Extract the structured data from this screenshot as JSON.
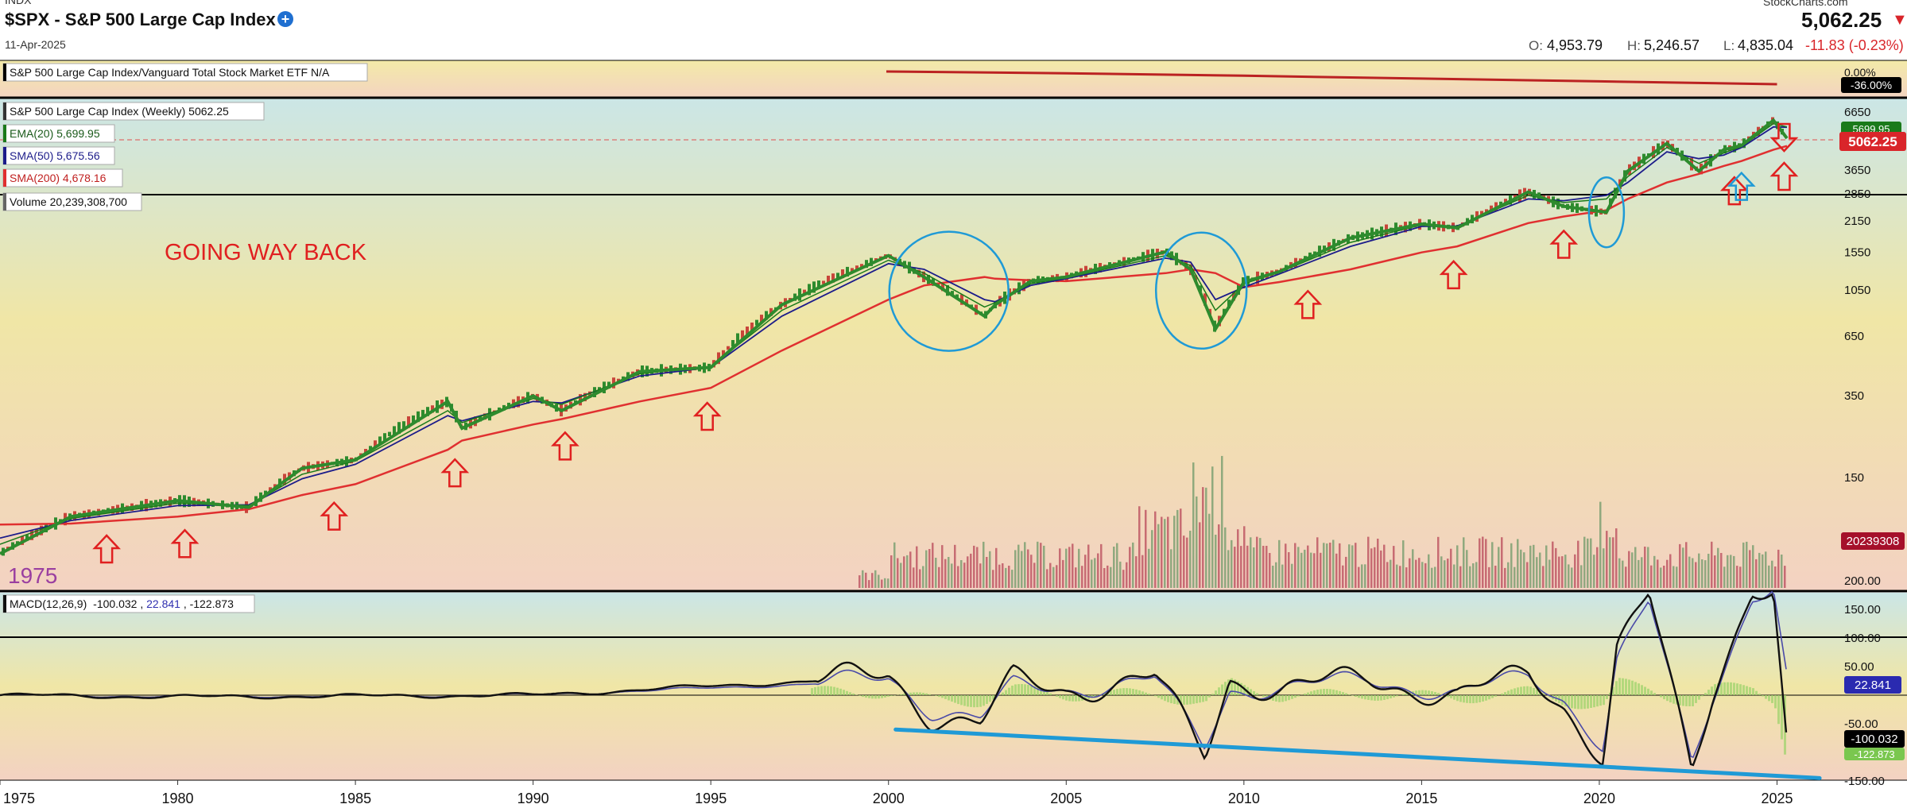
{
  "header": {
    "exchange": "INDX",
    "symbol_title": "$SPX - S&P 500 Large Cap Index",
    "add_icon": "plus-circle-icon",
    "date": "11-Apr-2025",
    "brand": "StockCharts.com",
    "price": "5,062.25",
    "direction_icon": "triangle-down-icon",
    "ohlc": {
      "open_label": "O:",
      "open": "4,953.79",
      "high_label": "H:",
      "high": "5,246.57",
      "low_label": "L:",
      "low": "4,835.04",
      "change": "-11.83 (-0.23%)"
    }
  },
  "colors": {
    "accent_blue": "#1f9ad6",
    "price_up": "#2e8b2e",
    "price_down": "#d9252a",
    "sma200": "#e03030",
    "sma50": "#1c1c8a",
    "ema20": "#1a7a1a",
    "annotation_red": "#e02020"
  },
  "chart_data": [
    {
      "type": "line",
      "panel": "ratio",
      "legend": [
        "S&P 500 Large Cap Index/Vanguard Total Stock Market ETF N/A"
      ],
      "y_ticks": [
        "0.00%"
      ],
      "last_value_badge": "-36.00%",
      "x": [
        2000.0,
        2005,
        2010,
        2015,
        2020,
        2025.0
      ],
      "series": [
        {
          "values": [
            0.0,
            -5,
            -12,
            -20,
            -28,
            -36
          ]
        }
      ]
    },
    {
      "type": "line",
      "panel": "price",
      "scale": "log",
      "x": [
        1975,
        1977,
        1980,
        1982,
        1983.5,
        1985,
        1987.6,
        1988,
        1990,
        1990.8,
        1993,
        1995,
        1997,
        2000.0,
        2001,
        2002.7,
        2003,
        2004,
        2005,
        2007.8,
        2008.5,
        2009.2,
        2010,
        2011,
        2013,
        2015,
        2016,
        2018,
        2019,
        2020.2,
        2020.8,
        2021.9,
        2022.8,
        2023.5,
        2024,
        2024.9,
        2025.28
      ],
      "series": [
        {
          "name": "S&P 500 Large Cap Index (Weekly) 5062.25",
          "values": [
            68,
            100,
            118,
            110,
            165,
            180,
            330,
            250,
            350,
            300,
            450,
            470,
            900,
            1500,
            1200,
            800,
            900,
            1150,
            1200,
            1560,
            1300,
            700,
            1140,
            1270,
            1800,
            2080,
            2000,
            2900,
            2500,
            2350,
            3600,
            4800,
            3600,
            4500,
            4700,
            6100,
            5062
          ]
        },
        {
          "name": "EMA(20) 5,699.95",
          "values": [
            75,
            98,
            115,
            112,
            155,
            178,
            300,
            265,
            340,
            320,
            440,
            475,
            850,
            1430,
            1250,
            880,
            920,
            1120,
            1190,
            1500,
            1350,
            850,
            1120,
            1260,
            1720,
            2060,
            2030,
            2800,
            2600,
            2700,
            3400,
            4600,
            3900,
            4350,
            4650,
            5900,
            5700
          ]
        },
        {
          "name": "SMA(50) 5,675.56",
          "values": [
            80,
            96,
            112,
            113,
            148,
            172,
            285,
            270,
            330,
            325,
            430,
            470,
            800,
            1380,
            1300,
            950,
            930,
            1100,
            1180,
            1460,
            1400,
            950,
            1080,
            1240,
            1650,
            2030,
            2040,
            2700,
            2650,
            2800,
            3200,
            4400,
            4100,
            4250,
            4600,
            5700,
            5675
          ]
        },
        {
          "name": "SMA(200) 4,678.16",
          "values": [
            92,
            93,
            100,
            108,
            125,
            140,
            200,
            220,
            260,
            275,
            330,
            380,
            560,
            950,
            1100,
            1200,
            1180,
            1160,
            1150,
            1250,
            1300,
            1250,
            1080,
            1140,
            1300,
            1550,
            1650,
            2100,
            2250,
            2400,
            2700,
            3200,
            3500,
            3800,
            4000,
            4500,
            4678
          ]
        }
      ],
      "y_ticks": [
        150,
        350,
        650,
        1050,
        1550,
        2150,
        2850,
        3650,
        6650
      ],
      "last_value_badges": [
        "5699.95",
        "5062.25"
      ],
      "volume": {
        "label": "Volume 20,239,308,700",
        "badge": "20239308"
      },
      "annotations": {
        "text": "GOING WAY BACK",
        "start_label": "1975",
        "up_arrows_red_x": [
          1978.0,
          1980.2,
          1984.4,
          1987.8,
          1990.9,
          1994.9,
          2011.8,
          2015.9,
          2019.0,
          2023.8,
          2025.2
        ],
        "up_arrows_blue_x": [
          2024.0
        ],
        "down_arrows_red_x": [
          2025.2
        ],
        "circles_x": [
          2001.7,
          2008.8,
          2020.2
        ]
      }
    },
    {
      "type": "line",
      "panel": "macd",
      "legend": "MACD(12,26,9)",
      "legend_values": [
        "-100.032",
        "22.841",
        "-122.873"
      ],
      "x": [
        1975,
        1980,
        1990,
        1998,
        2000.0,
        2001.2,
        2002.6,
        2003.5,
        2005,
        2007.5,
        2008.9,
        2009.6,
        2011,
        2013.5,
        2016,
        2018,
        2019,
        2020.1,
        2020.5,
        2021.4,
        2022.6,
        2023.2,
        2024.3,
        2024.9,
        2025.28
      ],
      "series": [
        {
          "name": "MACD",
          "values": [
            0,
            -3,
            0,
            25,
            35,
            -35,
            -50,
            25,
            10,
            30,
            -105,
            30,
            10,
            30,
            -5,
            40,
            -15,
            -110,
            80,
            170,
            -130,
            10,
            190,
            180,
            -100
          ]
        },
        {
          "name": "Signal",
          "values": [
            0,
            -2,
            0,
            20,
            30,
            -25,
            -40,
            15,
            10,
            28,
            -90,
            10,
            12,
            28,
            0,
            35,
            -5,
            -90,
            60,
            160,
            -115,
            0,
            175,
            185,
            22.8
          ]
        }
      ],
      "y_ticks": [
        200.0,
        150.0,
        100.0,
        50.0,
        -50.0,
        -100.0,
        -150.0
      ],
      "last_value_badges": [
        "22.841",
        "-100.032",
        "-122.873"
      ],
      "trendline": {
        "x": [
          2000.2,
          2026.2
        ],
        "y": [
          -60,
          -145
        ]
      }
    }
  ],
  "x_axis": {
    "ticks": [
      "1975",
      "1980",
      "1985",
      "1990",
      "1995",
      "2000",
      "2005",
      "2010",
      "2015",
      "2020",
      "2025"
    ]
  }
}
